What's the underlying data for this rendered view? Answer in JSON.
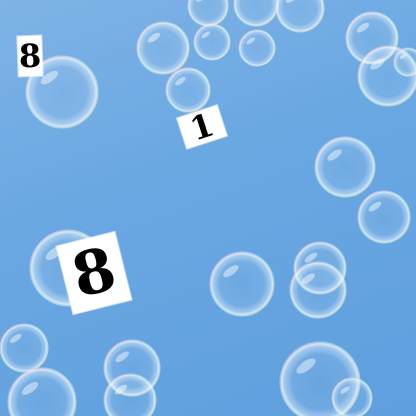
{
  "scene": {
    "sky_color": "#6aa8e2",
    "tile_color": "#ffffff",
    "digit_color": "#000000"
  },
  "digits": {
    "top_left": "8",
    "upper_middle": "1",
    "lower_left": "8"
  }
}
